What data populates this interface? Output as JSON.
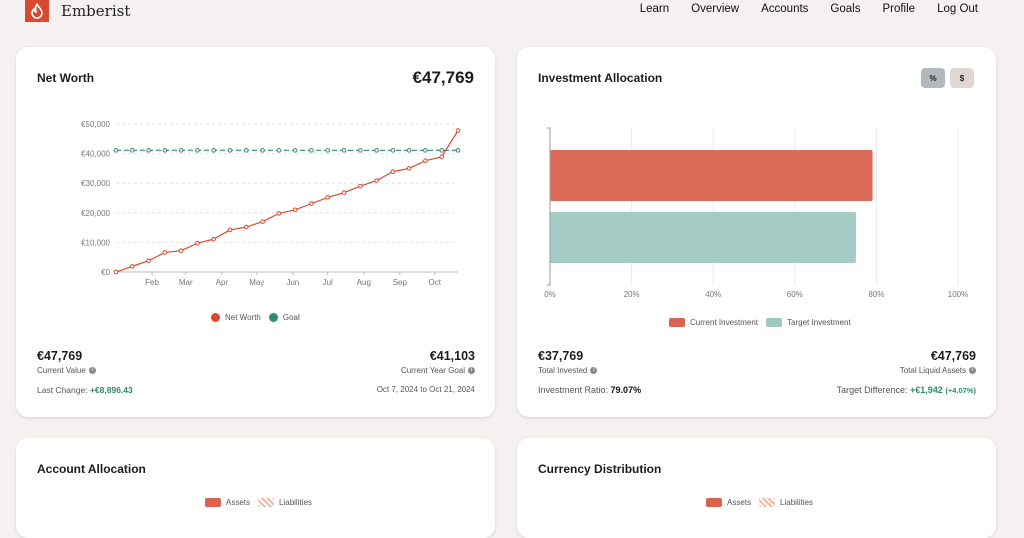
{
  "app": {
    "name": "Emberist",
    "logo_icon": "flame-icon"
  },
  "nav": [
    "Learn",
    "Overview",
    "Accounts",
    "Goals",
    "Profile",
    "Log Out"
  ],
  "net_worth": {
    "title": "Net Worth",
    "total": "€47,769",
    "current_value": "€47,769",
    "current_value_label": "Current Value",
    "goal_value": "€41,103",
    "goal_label": "Current Year Goal",
    "last_change_label": "Last Change:",
    "last_change": "+€8,896.43",
    "range": "Oct 7, 2024 to Oct 21, 2024"
  },
  "investment": {
    "title": "Investment Allocation",
    "toggle_percent": "%",
    "toggle_dollar": "$",
    "total_invested": "€37,769",
    "total_invested_label": "Total Invested",
    "total_liquid": "€47,769",
    "total_liquid_label": "Total Liquid Assets",
    "ratio_label": "Investment Ratio:",
    "ratio": "79.07%",
    "diff_label": "Target Difference:",
    "diff": "+€1,942",
    "diff_pct": "(+4.07%)"
  },
  "account_allocation": {
    "title": "Account Allocation",
    "legend": [
      "Assets",
      "Liabilities"
    ]
  },
  "currency_distribution": {
    "title": "Currency Distribution",
    "legend": [
      "Assets",
      "Liabilities"
    ]
  },
  "chart_data": [
    {
      "type": "line",
      "x_start": "2024-01-01",
      "x_interval_days": 14,
      "x_ticks": [
        "Feb",
        "Mar",
        "Apr",
        "May",
        "Jun",
        "Jul",
        "Aug",
        "Sep",
        "Oct"
      ],
      "y_ticks": [
        "€0",
        "€10,000",
        "€20,000",
        "€30,000",
        "€40,000",
        "€50,000"
      ],
      "ylim": [
        0,
        50000
      ],
      "grid": true,
      "legend_position": "bottom",
      "series": [
        {
          "name": "Net Worth",
          "color": "#d9492f",
          "values": [
            0,
            1900,
            3800,
            6600,
            7200,
            9750,
            11100,
            14200,
            15200,
            17000,
            19800,
            21000,
            23100,
            25200,
            26800,
            29000,
            30900,
            33900,
            35000,
            37600,
            38900,
            47769
          ]
        },
        {
          "name": "Goal",
          "color": "#2e8b7a",
          "dashed": true,
          "values": [
            41103,
            41103,
            41103,
            41103,
            41103,
            41103,
            41103,
            41103,
            41103,
            41103,
            41103,
            41103,
            41103,
            41103,
            41103,
            41103,
            41103,
            41103,
            41103,
            41103,
            41103,
            41103
          ]
        }
      ]
    },
    {
      "type": "bar",
      "orientation": "horizontal",
      "x_ticks": [
        "0%",
        "20%",
        "40%",
        "60%",
        "80%",
        "100%"
      ],
      "xlim": [
        0,
        100
      ],
      "legend_position": "bottom",
      "series": [
        {
          "name": "Current Investment",
          "color": "#d9634f",
          "value": 79.07
        },
        {
          "name": "Target Investment",
          "color": "#9fc8c1",
          "value": 75
        }
      ]
    }
  ]
}
